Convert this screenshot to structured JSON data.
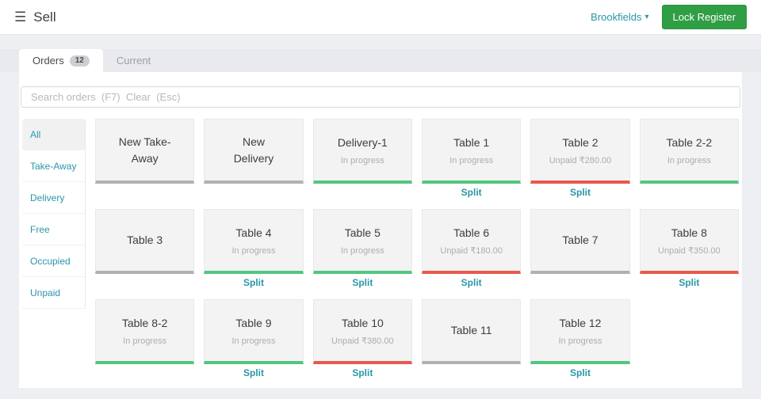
{
  "app": {
    "title": "Sell",
    "location": "Brookfields",
    "lock_register_label": "Lock Register"
  },
  "tabs": [
    {
      "label": "Orders",
      "badge": "12",
      "active": true
    },
    {
      "label": "Current",
      "badge": "",
      "active": false
    }
  ],
  "search": {
    "placeholder": "Search orders  (F7)  Clear  (Esc)"
  },
  "filters": [
    {
      "label": "All",
      "active": true
    },
    {
      "label": "Take-Away",
      "active": false
    },
    {
      "label": "Delivery",
      "active": false
    },
    {
      "label": "Free",
      "active": false
    },
    {
      "label": "Occupied",
      "active": false
    },
    {
      "label": "Unpaid",
      "active": false
    }
  ],
  "labels": {
    "split": "Split"
  },
  "colors": {
    "teal_accent": "#2a96a8",
    "lock_button_green": "#2f9e44",
    "border_green": "#52c77e",
    "border_red": "#e8594e",
    "border_gray": "#b1b1b1",
    "page_background": "#edeff2"
  },
  "orders": [
    {
      "title": "New Take-Away",
      "subtitle": "",
      "status": "gray",
      "split": false
    },
    {
      "title": "New Delivery",
      "subtitle": "",
      "status": "gray",
      "split": false
    },
    {
      "title": "Delivery-1",
      "subtitle": "In progress",
      "status": "green",
      "split": false
    },
    {
      "title": "Table 1",
      "subtitle": "In progress",
      "status": "green",
      "split": true
    },
    {
      "title": "Table 2",
      "subtitle": "Unpaid ₹280.00",
      "status": "red",
      "split": true
    },
    {
      "title": "Table 2-2",
      "subtitle": "In progress",
      "status": "green",
      "split": false
    },
    {
      "title": "Table 3",
      "subtitle": "",
      "status": "gray",
      "split": false
    },
    {
      "title": "Table 4",
      "subtitle": "In progress",
      "status": "green",
      "split": true
    },
    {
      "title": "Table 5",
      "subtitle": "In progress",
      "status": "green",
      "split": true
    },
    {
      "title": "Table 6",
      "subtitle": "Unpaid ₹180.00",
      "status": "red",
      "split": true
    },
    {
      "title": "Table 7",
      "subtitle": "",
      "status": "gray",
      "split": false
    },
    {
      "title": "Table 8",
      "subtitle": "Unpaid ₹350.00",
      "status": "red",
      "split": true
    },
    {
      "title": "Table 8-2",
      "subtitle": "In progress",
      "status": "green",
      "split": false
    },
    {
      "title": "Table 9",
      "subtitle": "In progress",
      "status": "green",
      "split": true
    },
    {
      "title": "Table 10",
      "subtitle": "Unpaid ₹380.00",
      "status": "red",
      "split": true
    },
    {
      "title": "Table 11",
      "subtitle": "",
      "status": "gray",
      "split": false
    },
    {
      "title": "Table 12",
      "subtitle": "In progress",
      "status": "green",
      "split": true
    }
  ]
}
